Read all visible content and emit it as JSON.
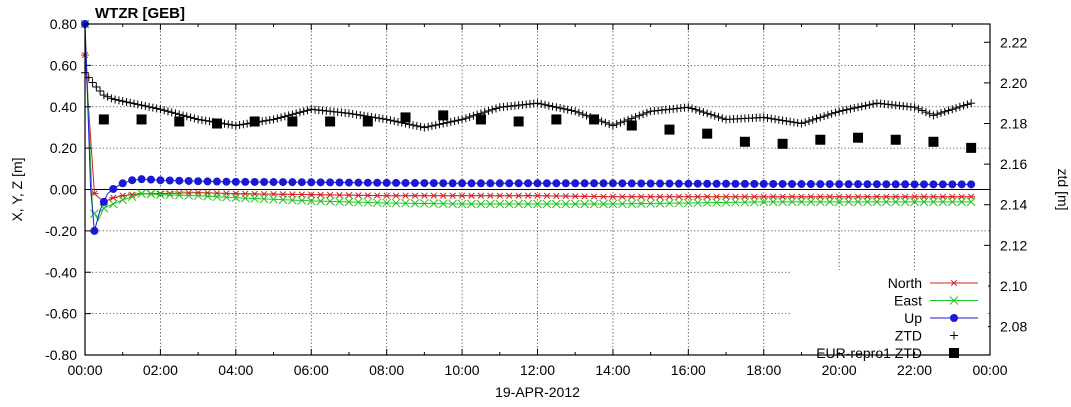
{
  "chart_data": {
    "type": "line",
    "title": "WTZR [GEB]",
    "xlabel": "19-APR-2012",
    "ylabel": "X, Y, Z [m]",
    "y2label": "ztd [m]",
    "x_ticks": [
      "00:00",
      "02:00",
      "04:00",
      "06:00",
      "08:00",
      "10:00",
      "12:00",
      "14:00",
      "16:00",
      "18:00",
      "20:00",
      "22:00",
      "00:00"
    ],
    "y_ticks": [
      "0.80",
      "0.60",
      "0.40",
      "0.20",
      "0.00",
      "-0.20",
      "-0.40",
      "-0.60",
      "-0.80"
    ],
    "y2_ticks": [
      "2.22",
      "2.20",
      "2.18",
      "2.16",
      "2.14",
      "2.12",
      "2.10",
      "2.08"
    ],
    "xlim_hours": [
      0,
      24
    ],
    "ylim": [
      -0.8,
      0.8
    ],
    "y2lim": [
      2.066,
      2.229
    ],
    "grid": true,
    "legend_position": "bottom-right",
    "colors": {
      "north": "#d62020",
      "east": "#22c422",
      "up": "#1a1ad6",
      "ztd": "#000000",
      "ref": "#000000"
    },
    "series": [
      {
        "name": "North",
        "axis": "left",
        "marker": "asterisk",
        "x": [
          0,
          0.25,
          0.5,
          0.75,
          1,
          1.5,
          2,
          3,
          4,
          6,
          8,
          10,
          12,
          14,
          16,
          18,
          20,
          22,
          23.5
        ],
        "y": [
          0.65,
          -0.02,
          -0.06,
          -0.04,
          -0.03,
          -0.02,
          -0.02,
          -0.015,
          -0.02,
          -0.025,
          -0.03,
          -0.03,
          -0.03,
          -0.035,
          -0.035,
          -0.035,
          -0.035,
          -0.035,
          -0.035
        ]
      },
      {
        "name": "East",
        "axis": "left",
        "marker": "x",
        "x": [
          0,
          0.2,
          0.35,
          0.5,
          0.75,
          1,
          1.5,
          2,
          3,
          4,
          6,
          8,
          10,
          12,
          14,
          16,
          18,
          20,
          22,
          23.5
        ],
        "y": [
          0.8,
          -0.1,
          -0.15,
          -0.09,
          -0.07,
          -0.05,
          -0.02,
          -0.025,
          -0.03,
          -0.04,
          -0.055,
          -0.065,
          -0.07,
          -0.07,
          -0.07,
          -0.065,
          -0.06,
          -0.06,
          -0.06,
          -0.06
        ]
      },
      {
        "name": "Up",
        "axis": "left",
        "marker": "circle",
        "x": [
          0,
          0.15,
          0.25,
          0.4,
          0.6,
          0.8,
          1.0,
          1.25,
          1.5,
          1.75,
          2,
          3,
          4,
          6,
          8,
          10,
          12,
          14,
          16,
          18,
          20,
          22,
          23.5
        ],
        "y": [
          0.8,
          0.0,
          -0.2,
          -0.1,
          -0.02,
          0.01,
          0.03,
          0.045,
          0.05,
          0.048,
          0.045,
          0.04,
          0.037,
          0.035,
          0.032,
          0.03,
          0.03,
          0.03,
          0.028,
          0.027,
          0.026,
          0.025,
          0.025
        ]
      },
      {
        "name": "ZTD",
        "axis": "right",
        "marker": "plus",
        "x": [
          0,
          0.25,
          0.5,
          0.75,
          1,
          1.5,
          2,
          3,
          4,
          5,
          6,
          7,
          8,
          9,
          10,
          11,
          12,
          13,
          14,
          15,
          16,
          17,
          18,
          19,
          20,
          21,
          22,
          22.5,
          23,
          23.5
        ],
        "y": [
          2.205,
          2.199,
          2.194,
          2.192,
          2.191,
          2.189,
          2.187,
          2.182,
          2.179,
          2.182,
          2.187,
          2.185,
          2.182,
          2.178,
          2.182,
          2.188,
          2.19,
          2.186,
          2.179,
          2.186,
          2.188,
          2.182,
          2.183,
          2.18,
          2.186,
          2.19,
          2.188,
          2.184,
          2.187,
          2.19
        ]
      },
      {
        "name": "EUR-repro1 ZTD",
        "axis": "right",
        "marker": "square",
        "x": [
          0.5,
          1.5,
          2.5,
          3.5,
          4.5,
          5.5,
          6.5,
          7.5,
          8.5,
          9.5,
          10.5,
          11.5,
          12.5,
          13.5,
          14.5,
          15.5,
          16.5,
          17.5,
          18.5,
          19.5,
          20.5,
          21.5,
          22.5,
          23.5
        ],
        "y": [
          2.182,
          2.182,
          2.181,
          2.18,
          2.181,
          2.181,
          2.181,
          2.181,
          2.183,
          2.184,
          2.182,
          2.181,
          2.182,
          2.182,
          2.179,
          2.177,
          2.175,
          2.171,
          2.17,
          2.172,
          2.173,
          2.172,
          2.171,
          2.168
        ]
      }
    ]
  }
}
